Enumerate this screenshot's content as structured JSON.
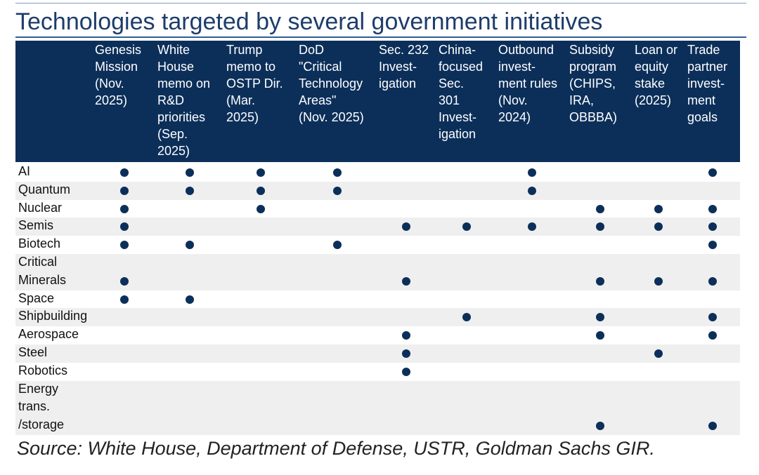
{
  "title": "Technologies targeted by several government initiatives",
  "columns": [
    "Genesis\nMission\n(Nov.\n2025)",
    "White\nHouse\nmemo on\nR&D\npriorities\n(Sep.\n2025)",
    "Trump\nmemo to\nOSTP Dir.\n(Mar.\n2025)",
    "DoD\n\"Critical\nTechnology\nAreas\"\n(Nov. 2025)",
    "Sec. 232\nInvest-\nigation",
    "China-\nfocused\nSec.\n301\nInvest-\nigation",
    "Outbound\ninvest-\nment rules\n(Nov.\n2024)",
    "Subsidy\nprogram\n(CHIPS,\nIRA,\nOBBBA)",
    "Loan or\nequity\nstake\n(2025)",
    "Trade\npartner\ninvest-\nment\ngoals"
  ],
  "rows": [
    {
      "label": "AI",
      "cells": [
        true,
        true,
        true,
        true,
        false,
        false,
        true,
        false,
        false,
        true
      ]
    },
    {
      "label": "Quantum",
      "cells": [
        true,
        true,
        true,
        true,
        false,
        false,
        true,
        false,
        false,
        false
      ]
    },
    {
      "label": "Nuclear",
      "cells": [
        true,
        false,
        true,
        false,
        false,
        false,
        false,
        true,
        true,
        true
      ]
    },
    {
      "label": "Semis",
      "cells": [
        true,
        false,
        false,
        false,
        true,
        true,
        true,
        true,
        true,
        true
      ]
    },
    {
      "label": "Biotech",
      "cells": [
        true,
        true,
        false,
        true,
        false,
        false,
        false,
        false,
        false,
        true
      ]
    },
    {
      "label": "Critical\nMinerals",
      "cells": [
        true,
        false,
        false,
        false,
        true,
        false,
        false,
        true,
        true,
        true
      ]
    },
    {
      "label": "Space",
      "cells": [
        true,
        true,
        false,
        false,
        false,
        false,
        false,
        false,
        false,
        false
      ]
    },
    {
      "label": "Shipbuilding",
      "cells": [
        false,
        false,
        false,
        false,
        false,
        true,
        false,
        true,
        false,
        true
      ]
    },
    {
      "label": "Aerospace",
      "cells": [
        false,
        false,
        false,
        false,
        true,
        false,
        false,
        true,
        false,
        true
      ]
    },
    {
      "label": "Steel",
      "cells": [
        false,
        false,
        false,
        false,
        true,
        false,
        false,
        false,
        true,
        false
      ]
    },
    {
      "label": "Robotics",
      "cells": [
        false,
        false,
        false,
        false,
        true,
        false,
        false,
        false,
        false,
        false
      ]
    },
    {
      "label": "Energy\ntrans.\n/storage",
      "cells": [
        false,
        false,
        false,
        false,
        false,
        false,
        false,
        true,
        false,
        true
      ]
    }
  ],
  "source": "Source: White House, Department of Defense, USTR, Goldman Sachs GIR."
}
